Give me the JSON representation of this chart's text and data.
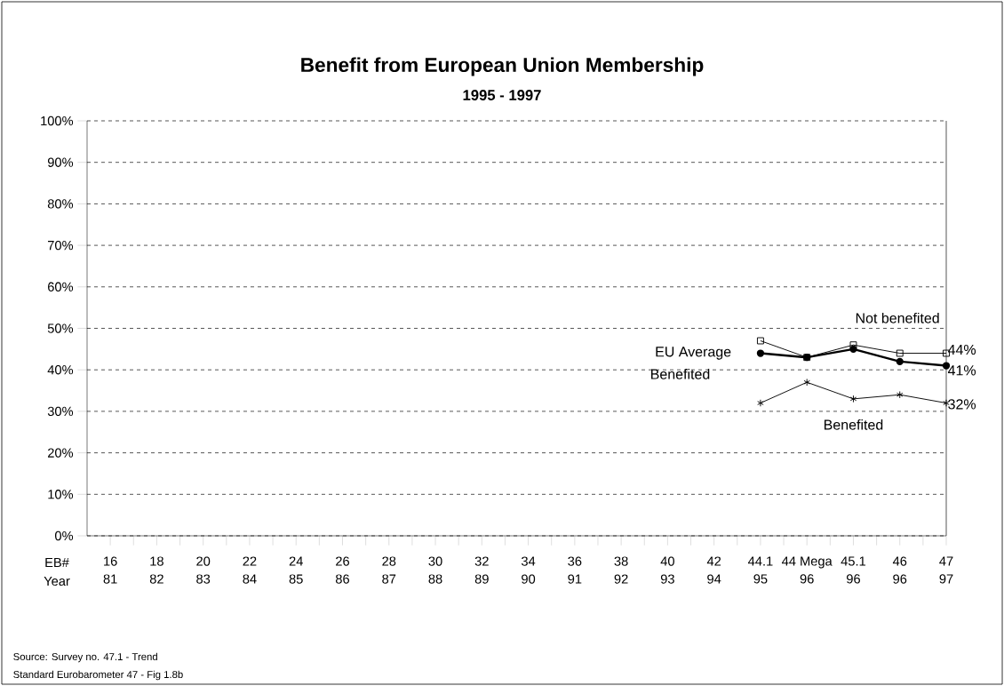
{
  "chart_data": {
    "type": "line",
    "title": "Benefit from European Union Membership",
    "subtitle": "1995 - 1997",
    "categories": [
      "16",
      "18",
      "20",
      "22",
      "24",
      "26",
      "28",
      "30",
      "32",
      "34",
      "36",
      "38",
      "40",
      "42",
      "44.1",
      "44 Mega",
      "45.1",
      "46",
      "47"
    ],
    "series": [
      {
        "name": "Not benefited",
        "color": "#000000",
        "marker": "square",
        "values": [
          null,
          null,
          null,
          null,
          null,
          null,
          null,
          null,
          null,
          null,
          null,
          null,
          null,
          null,
          47,
          43,
          46,
          44,
          44
        ],
        "value_labels": [
          null,
          null,
          null,
          null,
          null,
          null,
          null,
          null,
          null,
          null,
          null,
          null,
          null,
          null,
          null,
          null,
          null,
          null,
          "44%"
        ]
      },
      {
        "name": "EU Average",
        "color": "#000000",
        "marker": "circle",
        "values": [
          null,
          null,
          null,
          null,
          null,
          null,
          null,
          null,
          null,
          null,
          null,
          null,
          null,
          null,
          44,
          43,
          45,
          42,
          41
        ],
        "value_labels": [
          null,
          null,
          null,
          null,
          null,
          null,
          null,
          null,
          null,
          null,
          null,
          null,
          null,
          null,
          null,
          null,
          null,
          null,
          "41%"
        ]
      },
      {
        "name": "Benefited",
        "color": "#000000",
        "marker": "cross",
        "values": [
          null,
          null,
          null,
          null,
          null,
          null,
          null,
          null,
          null,
          null,
          null,
          null,
          null,
          null,
          32,
          37,
          33,
          34,
          32
        ],
        "value_labels": [
          null,
          null,
          null,
          null,
          null,
          null,
          null,
          null,
          null,
          null,
          null,
          null,
          null,
          null,
          null,
          null,
          null,
          null,
          "32%"
        ]
      }
    ],
    "ylim": [
      0,
      100
    ],
    "yticks": [
      {
        "value": 0,
        "label": "0%"
      },
      {
        "value": 10,
        "label": "10%"
      },
      {
        "value": 20,
        "label": "20%"
      },
      {
        "value": 30,
        "label": "30%"
      },
      {
        "value": 40,
        "label": "40%"
      },
      {
        "value": 50,
        "label": "50%"
      },
      {
        "value": 60,
        "label": "60%"
      },
      {
        "value": 70,
        "label": "70%"
      },
      {
        "value": 80,
        "label": "80%"
      },
      {
        "value": 90,
        "label": "90%"
      },
      {
        "value": 100,
        "label": "100%"
      }
    ],
    "grid": "y",
    "legend": false,
    "line_style": "solid",
    "annotations": [
      "EB#",
      "Year",
      "Benefited",
      "Source:  Survey no.  47.1 - Trend",
      "Standard Eurobarometer 47 - Fig 1.8b",
      "81",
      "82",
      "83",
      "84",
      "85",
      "86",
      "87",
      "88",
      "89",
      "90",
      "91",
      "92",
      "93",
      "94",
      "95",
      "96",
      "96",
      "96",
      "97"
    ]
  }
}
